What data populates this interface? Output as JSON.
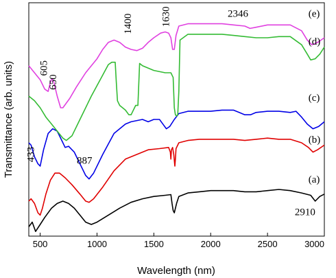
{
  "chart_data": {
    "type": "line",
    "xlabel": "Wavelength (nm)",
    "ylabel": "Transmittance (arb. units)",
    "xlim": [
      400,
      3000
    ],
    "ylim": [
      0,
      100
    ],
    "x_ticks": [
      500,
      1000,
      1500,
      2000,
      2500,
      3000
    ],
    "y_ticks_shown": false,
    "grid": false,
    "legend": "none",
    "series": [
      {
        "label": "(a)",
        "color": "#000000",
        "points": [
          [
            400,
            4
          ],
          [
            430,
            6
          ],
          [
            460,
            2
          ],
          [
            500,
            5
          ],
          [
            540,
            8
          ],
          [
            600,
            12
          ],
          [
            650,
            14
          ],
          [
            700,
            15
          ],
          [
            750,
            14
          ],
          [
            800,
            12
          ],
          [
            850,
            9
          ],
          [
            900,
            6
          ],
          [
            950,
            5
          ],
          [
            1000,
            6
          ],
          [
            1100,
            9
          ],
          [
            1200,
            12
          ],
          [
            1300,
            14.5
          ],
          [
            1400,
            16
          ],
          [
            1500,
            17
          ],
          [
            1600,
            17.5
          ],
          [
            1650,
            17.8
          ],
          [
            1660,
            14
          ],
          [
            1670,
            11
          ],
          [
            1680,
            10
          ],
          [
            1700,
            14
          ],
          [
            1720,
            17
          ],
          [
            1800,
            18.5
          ],
          [
            1900,
            19
          ],
          [
            2000,
            19.5
          ],
          [
            2100,
            19.5
          ],
          [
            2200,
            19.5
          ],
          [
            2300,
            19
          ],
          [
            2400,
            19
          ],
          [
            2500,
            19.5
          ],
          [
            2600,
            20
          ],
          [
            2700,
            19.5
          ],
          [
            2800,
            18.5
          ],
          [
            2880,
            17.5
          ],
          [
            2920,
            15
          ],
          [
            2960,
            17
          ],
          [
            3000,
            18
          ]
        ]
      },
      {
        "label": "(b)",
        "color": "#e00000",
        "points": [
          [
            400,
            15
          ],
          [
            420,
            16
          ],
          [
            450,
            14
          ],
          [
            480,
            10
          ],
          [
            500,
            9
          ],
          [
            520,
            12
          ],
          [
            550,
            18
          ],
          [
            590,
            24
          ],
          [
            630,
            27
          ],
          [
            670,
            27
          ],
          [
            720,
            25
          ],
          [
            780,
            22
          ],
          [
            850,
            18
          ],
          [
            900,
            15
          ],
          [
            930,
            14.5
          ],
          [
            970,
            16
          ],
          [
            1050,
            21
          ],
          [
            1150,
            28
          ],
          [
            1250,
            33
          ],
          [
            1350,
            35
          ],
          [
            1450,
            37
          ],
          [
            1550,
            37.5
          ],
          [
            1630,
            38
          ],
          [
            1645,
            36
          ],
          [
            1650,
            33
          ],
          [
            1655,
            37
          ],
          [
            1665,
            38
          ],
          [
            1675,
            35
          ],
          [
            1685,
            30
          ],
          [
            1690,
            33
          ],
          [
            1695,
            37.5
          ],
          [
            1720,
            40
          ],
          [
            1800,
            41
          ],
          [
            1900,
            41.5
          ],
          [
            2000,
            41.5
          ],
          [
            2100,
            41.5
          ],
          [
            2200,
            41.5
          ],
          [
            2300,
            41
          ],
          [
            2400,
            41.5
          ],
          [
            2500,
            42
          ],
          [
            2600,
            41.5
          ],
          [
            2700,
            41.5
          ],
          [
            2800,
            40
          ],
          [
            2860,
            38
          ],
          [
            2900,
            36
          ],
          [
            2940,
            37
          ],
          [
            3000,
            39
          ]
        ]
      },
      {
        "label": "(c)",
        "color": "#0000e6",
        "points": [
          [
            400,
            40
          ],
          [
            420,
            39
          ],
          [
            450,
            34
          ],
          [
            480,
            31
          ],
          [
            500,
            30
          ],
          [
            530,
            37
          ],
          [
            570,
            44
          ],
          [
            610,
            46
          ],
          [
            650,
            45
          ],
          [
            690,
            41
          ],
          [
            720,
            38
          ],
          [
            750,
            38.5
          ],
          [
            800,
            36
          ],
          [
            850,
            31
          ],
          [
            900,
            26
          ],
          [
            930,
            24.5
          ],
          [
            970,
            27
          ],
          [
            1050,
            35
          ],
          [
            1150,
            44
          ],
          [
            1250,
            48
          ],
          [
            1300,
            49
          ],
          [
            1400,
            50
          ],
          [
            1450,
            49
          ],
          [
            1500,
            50
          ],
          [
            1550,
            50
          ],
          [
            1580,
            48
          ],
          [
            1610,
            46
          ],
          [
            1640,
            47
          ],
          [
            1680,
            50
          ],
          [
            1720,
            52.5
          ],
          [
            1800,
            53.5
          ],
          [
            1900,
            53.5
          ],
          [
            2000,
            53.5
          ],
          [
            2100,
            54
          ],
          [
            2200,
            54
          ],
          [
            2250,
            53
          ],
          [
            2300,
            52
          ],
          [
            2350,
            52
          ],
          [
            2400,
            53
          ],
          [
            2500,
            53.5
          ],
          [
            2600,
            53.5
          ],
          [
            2700,
            53
          ],
          [
            2750,
            53.5
          ],
          [
            2800,
            51
          ],
          [
            2850,
            48
          ],
          [
            2900,
            46
          ],
          [
            2950,
            47
          ],
          [
            3000,
            49
          ]
        ]
      },
      {
        "label": "(d)",
        "color": "#33bb33",
        "points": [
          [
            400,
            60
          ],
          [
            450,
            58
          ],
          [
            500,
            55
          ],
          [
            550,
            51
          ],
          [
            600,
            48
          ],
          [
            650,
            45
          ],
          [
            700,
            42
          ],
          [
            730,
            41
          ],
          [
            780,
            43
          ],
          [
            850,
            50
          ],
          [
            950,
            60
          ],
          [
            1050,
            69
          ],
          [
            1100,
            73.5
          ],
          [
            1130,
            74.5
          ],
          [
            1160,
            74.5
          ],
          [
            1170,
            66
          ],
          [
            1180,
            58
          ],
          [
            1200,
            56
          ],
          [
            1250,
            54
          ],
          [
            1280,
            52
          ],
          [
            1300,
            52
          ],
          [
            1340,
            56
          ],
          [
            1360,
            56
          ],
          [
            1375,
            74
          ],
          [
            1400,
            73
          ],
          [
            1500,
            71
          ],
          [
            1600,
            70
          ],
          [
            1650,
            70
          ],
          [
            1670,
            68
          ],
          [
            1680,
            55
          ],
          [
            1690,
            52
          ],
          [
            1700,
            51.5
          ],
          [
            1710,
            52
          ],
          [
            1720,
            62
          ],
          [
            1730,
            84
          ],
          [
            1800,
            86.5
          ],
          [
            1900,
            86.5
          ],
          [
            2000,
            86.5
          ],
          [
            2100,
            86.5
          ],
          [
            2200,
            86
          ],
          [
            2300,
            85.5
          ],
          [
            2400,
            85
          ],
          [
            2500,
            85
          ],
          [
            2600,
            85.5
          ],
          [
            2700,
            85.5
          ],
          [
            2800,
            82
          ],
          [
            2850,
            78
          ],
          [
            2880,
            75.5
          ],
          [
            2920,
            76
          ],
          [
            2960,
            78
          ],
          [
            3000,
            81
          ]
        ]
      },
      {
        "label": "(e)",
        "color": "#e040e0",
        "points": [
          [
            400,
            73
          ],
          [
            450,
            70
          ],
          [
            500,
            67
          ],
          [
            540,
            63
          ],
          [
            570,
            62
          ],
          [
            590,
            66
          ],
          [
            605,
            67.5
          ],
          [
            620,
            66
          ],
          [
            650,
            60
          ],
          [
            680,
            55
          ],
          [
            700,
            55
          ],
          [
            760,
            59
          ],
          [
            820,
            64
          ],
          [
            900,
            70
          ],
          [
            1000,
            76
          ],
          [
            1050,
            80
          ],
          [
            1100,
            83
          ],
          [
            1150,
            84
          ],
          [
            1200,
            83
          ],
          [
            1250,
            81
          ],
          [
            1300,
            80
          ],
          [
            1350,
            79.5
          ],
          [
            1400,
            80.5
          ],
          [
            1450,
            83
          ],
          [
            1500,
            85
          ],
          [
            1560,
            87
          ],
          [
            1600,
            87.5
          ],
          [
            1630,
            87
          ],
          [
            1650,
            85
          ],
          [
            1665,
            80
          ],
          [
            1680,
            80
          ],
          [
            1695,
            86
          ],
          [
            1720,
            90
          ],
          [
            1800,
            91
          ],
          [
            1900,
            91
          ],
          [
            2000,
            91
          ],
          [
            2100,
            91
          ],
          [
            2200,
            90.5
          ],
          [
            2300,
            90
          ],
          [
            2346,
            89
          ],
          [
            2400,
            89.5
          ],
          [
            2500,
            90.5
          ],
          [
            2600,
            90.5
          ],
          [
            2700,
            90.5
          ],
          [
            2800,
            88
          ],
          [
            2850,
            84
          ],
          [
            2890,
            82
          ],
          [
            2940,
            83
          ],
          [
            3000,
            85
          ]
        ]
      }
    ],
    "series_labels": [
      {
        "text": "(e)",
        "x": 2860,
        "y": 94
      },
      {
        "text": "(d)",
        "x": 2860,
        "y": 82
      },
      {
        "text": "(c)",
        "x": 2860,
        "y": 58
      },
      {
        "text": "(b)",
        "x": 2860,
        "y": 40
      },
      {
        "text": "(a)",
        "x": 2860,
        "y": 23
      }
    ],
    "annotations": [
      {
        "text": "605",
        "x": 560,
        "y": 72
      },
      {
        "text": "650",
        "x": 640,
        "y": 66
      },
      {
        "text": "1400",
        "x": 1300,
        "y": 91
      },
      {
        "text": "1630",
        "x": 1635,
        "y": 94
      },
      {
        "text": "2346",
        "x": 2240,
        "y": 94
      },
      {
        "text": "433",
        "x": 445,
        "y": 35
      },
      {
        "text": "887",
        "x": 890,
        "y": 31
      },
      {
        "text": "2910",
        "x": 2830,
        "y": 9
      }
    ]
  }
}
